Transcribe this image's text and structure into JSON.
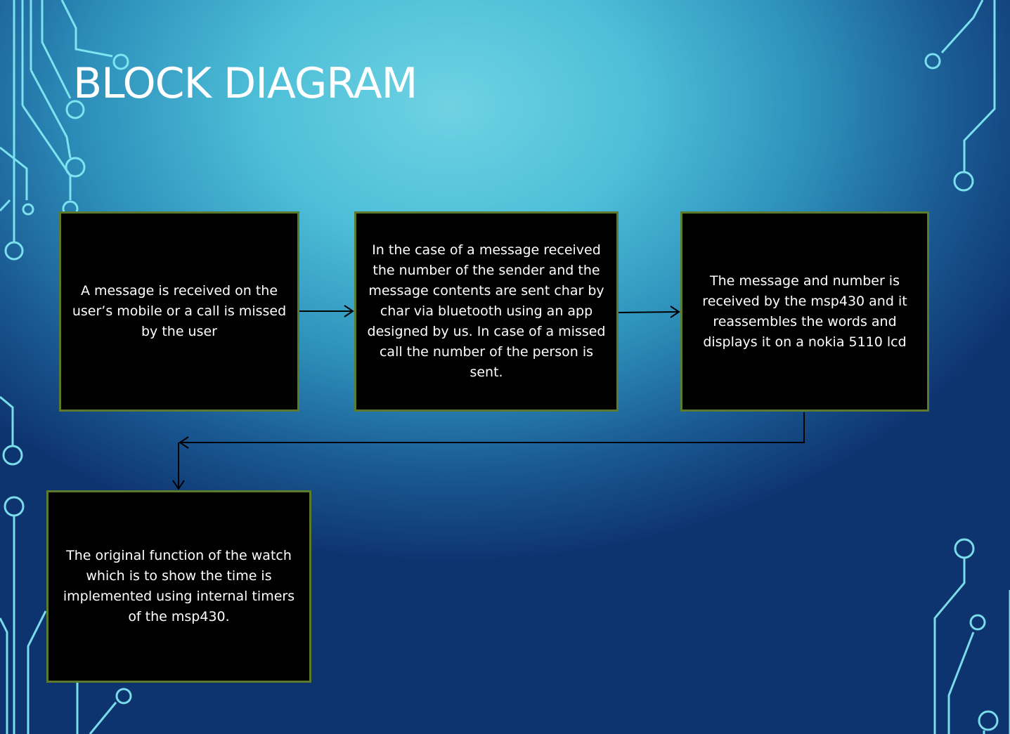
{
  "slide": {
    "title": "BLOCK DIAGRAM"
  },
  "blocks": [
    {
      "id": "message-received",
      "text": "A message is received on the user’s mobile or a call is missed by the user"
    },
    {
      "id": "bluetooth-send",
      "text": "In the case of a message received the number of the sender and the message contents are sent char by char via bluetooth using an app designed by us. In case of a missed call the number of the person is sent."
    },
    {
      "id": "msp430-display",
      "text": "The message and number is received by the msp430 and it reassembles the words and displays it on a nokia 5110 lcd"
    },
    {
      "id": "watch-function",
      "text": "The original function of the watch which is to show the time is implemented using internal timers of the msp430."
    }
  ],
  "colors": {
    "block_fill": "#000000",
    "block_border": "#5b7a2c",
    "text": "#ffffff",
    "circuit_line": "#7fe8f5"
  }
}
